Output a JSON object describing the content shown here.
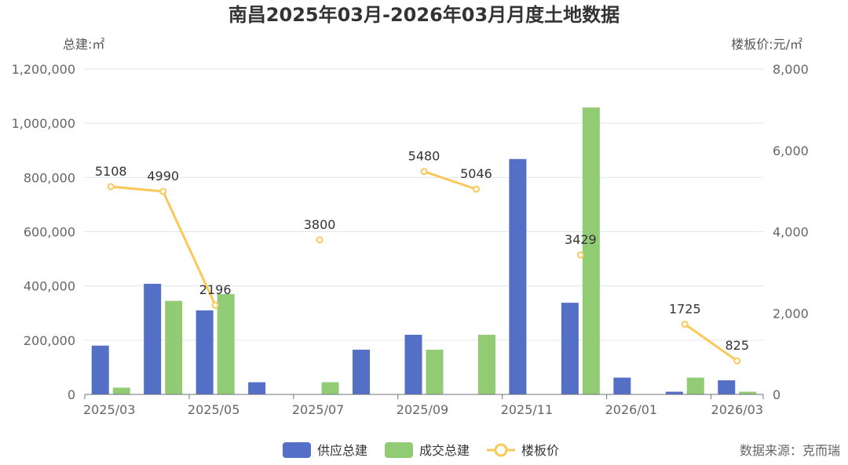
{
  "chart_data": {
    "type": "bar",
    "title": "南昌2025年03月-2026年03月月度土地数据",
    "ylabel_left": "总建:㎡",
    "ylabel_right": "楼板价:元/㎡",
    "categories": [
      "2025/03",
      "2025/04",
      "2025/05",
      "2025/06",
      "2025/07",
      "2025/08",
      "2025/09",
      "2025/10",
      "2025/11",
      "2025/12",
      "2026/01",
      "2026/02",
      "2026/03"
    ],
    "x_tick_labels": [
      "2025/03",
      "2025/05",
      "2025/07",
      "2025/09",
      "2025/11",
      "2026/01",
      "2026/03"
    ],
    "ylim_left": [
      0,
      1200000
    ],
    "ylim_right": [
      0,
      8000
    ],
    "left_ticks": [
      "0",
      "200,000",
      "400,000",
      "600,000",
      "800,000",
      "1,000,000",
      "1,200,000"
    ],
    "right_ticks": [
      "0",
      "2,000",
      "4,000",
      "6,000",
      "8,000"
    ],
    "series": [
      {
        "name": "供应总建",
        "type": "bar",
        "axis": "left",
        "color": "#5470c6",
        "values": [
          180000,
          408000,
          310000,
          45000,
          0,
          165000,
          220000,
          0,
          868000,
          338000,
          62000,
          10000,
          52000
        ]
      },
      {
        "name": "成交总建",
        "type": "bar",
        "axis": "left",
        "color": "#91cc75",
        "values": [
          25000,
          345000,
          370000,
          0,
          45000,
          0,
          165000,
          220000,
          0,
          1058000,
          0,
          62000,
          10000
        ]
      },
      {
        "name": "楼板价",
        "type": "line",
        "axis": "right",
        "color": "#fac858",
        "values": [
          5108,
          4990,
          2196,
          null,
          3800,
          null,
          5480,
          5046,
          null,
          3429,
          null,
          1725,
          825
        ],
        "labels": [
          "5108",
          "4990",
          "2196",
          "",
          "3800",
          "",
          "5480",
          "5046",
          "",
          "3429",
          "",
          "1725",
          "825"
        ]
      }
    ],
    "legend_position": "bottom-center",
    "grid": true
  },
  "source": "数据来源：克而瑞"
}
